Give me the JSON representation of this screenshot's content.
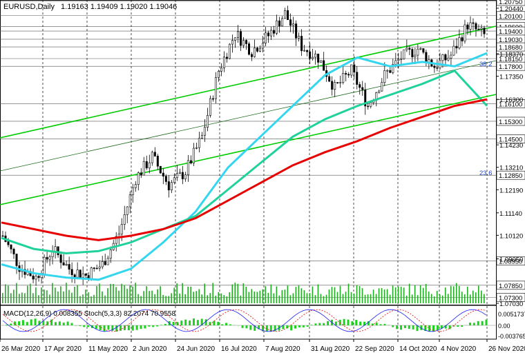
{
  "chart_data": {
    "type": "candlestick",
    "symbol": "EURUSD,Daily",
    "ohlc_text": "1.19163 1.19409 1.19020 1.19046",
    "price_ticks": [
      "1.20440",
      "1.18370",
      "1.17350",
      "1.16300",
      "1.14230",
      "1.13210",
      "1.12190",
      "1.11140",
      "1.10120",
      "1.09050",
      "1.07030"
    ],
    "price_levels": [
      "1.20750",
      "1.20100",
      "1.19600",
      "1.19400",
      "1.19030",
      "1.18680",
      "1.18150",
      "1.17800",
      "1.16100",
      "1.15300",
      "1.14500",
      "1.12850",
      "1.08950",
      "1.07850",
      "1.07300"
    ],
    "x_labels": [
      "26 Mar 2020",
      "17 Apr 2020",
      "11 May 2020",
      "2 Jun 2020",
      "24 Jun 2020",
      "16 Jul 2020",
      "7 Aug 2020",
      "31 Aug 2020",
      "22 Sep 2020",
      "14 Oct 2020",
      "4 Nov 2020",
      "26 Nov 2020"
    ],
    "fib_labels": [
      "38.2",
      "23.6"
    ],
    "ylim": [
      1.0703,
      1.2075
    ],
    "series": [
      {
        "name": "ma_fast",
        "color": "#33d6ef",
        "values": [
          1.088,
          1.084,
          1.082,
          1.081,
          1.086,
          1.098,
          1.112,
          1.132,
          1.146,
          1.16,
          1.174,
          1.182,
          1.178,
          1.18,
          1.178,
          1.184
        ]
      },
      {
        "name": "ma_mid",
        "color": "#1fd19a",
        "values": [
          1.1,
          1.095,
          1.093,
          1.094,
          1.098,
          1.104,
          1.11,
          1.122,
          1.134,
          1.146,
          1.154,
          1.16,
          1.165,
          1.17,
          1.176,
          1.16
        ]
      },
      {
        "name": "ma_slow",
        "color": "#e80000",
        "values": [
          1.107,
          1.104,
          1.101,
          1.099,
          1.101,
          1.104,
          1.109,
          1.117,
          1.125,
          1.133,
          1.139,
          1.144,
          1.15,
          1.155,
          1.16,
          1.163
        ]
      }
    ],
    "indicator": {
      "label": "MACD(12,26,9) 0.008355  Stoch(5,3,3) 82.2074 70.9558",
      "ticks": [
        "0.0051737",
        "0.00",
        "-0.0037650"
      ]
    },
    "colors": {
      "bull": "#1faa1f",
      "bear": "#1a1a1a",
      "channel": "#00cc00",
      "grid": "#000000",
      "label_bg": "#ffffff"
    }
  }
}
